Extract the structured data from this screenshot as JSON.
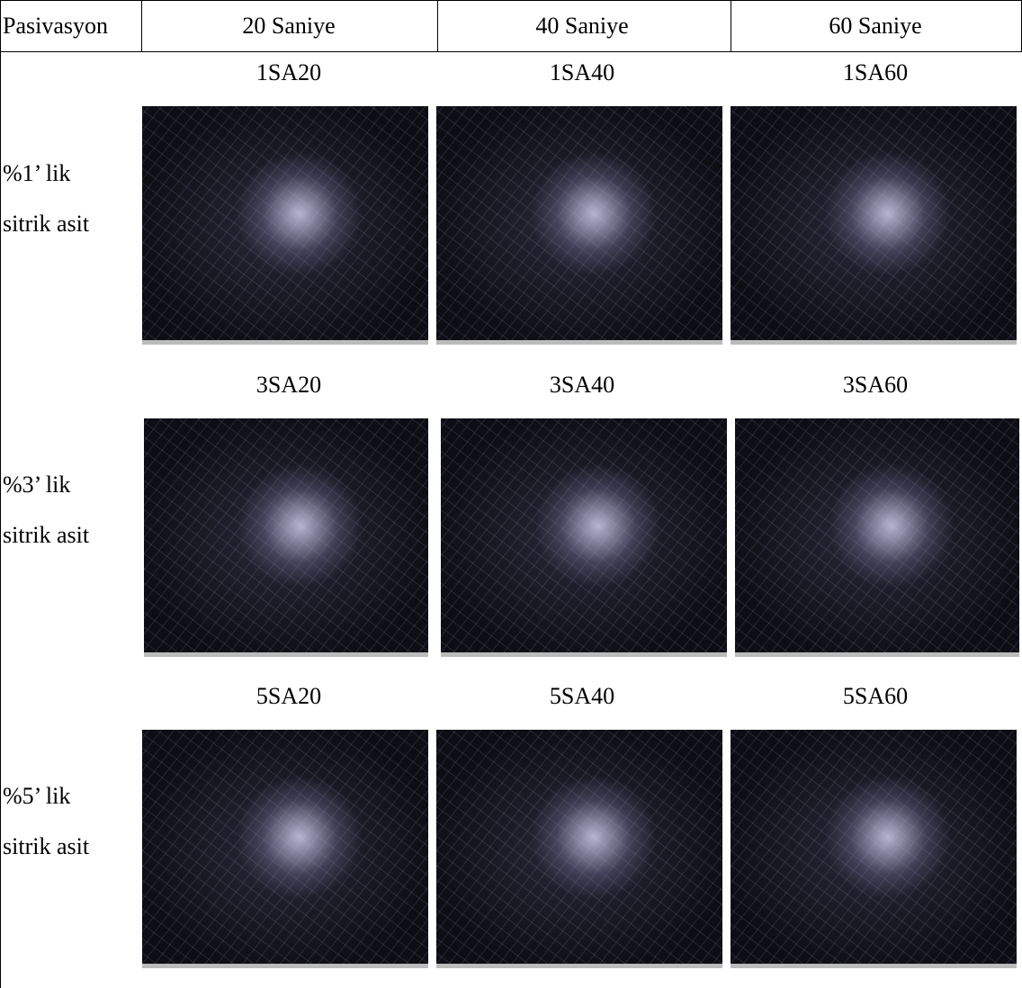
{
  "header": [
    "Pasivasyon",
    "20 Saniye",
    "40 Saniye",
    "60 Saniye"
  ],
  "rows": [
    {
      "label_lines": [
        "%1’ lik",
        "sitrik asit"
      ],
      "samples": [
        "1SA20",
        "1SA40",
        "1SA60"
      ]
    },
    {
      "label_lines": [
        "%3’ lik",
        "sitrik asit"
      ],
      "samples": [
        "3SA20",
        "3SA40",
        "3SA60"
      ]
    },
    {
      "label_lines": [
        "%5’ lik",
        "sitrik asit"
      ],
      "samples": [
        "5SA20",
        "5SA40",
        "5SA60"
      ]
    }
  ]
}
